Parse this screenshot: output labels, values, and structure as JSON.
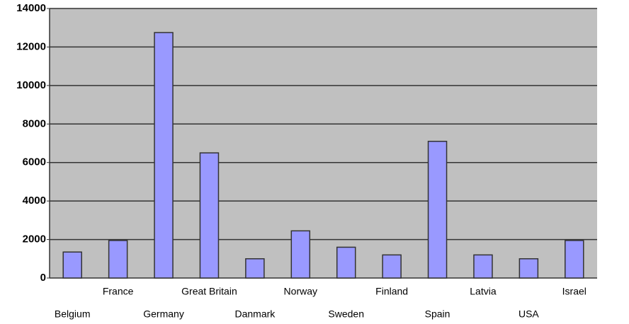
{
  "chart_data": {
    "type": "bar",
    "categories": [
      "Belgium",
      "France",
      "Germany",
      "Great Britain",
      "Danmark",
      "Norway",
      "Sweden",
      "Finland",
      "Spain",
      "Latvia",
      "USA",
      "Israel"
    ],
    "values": [
      1350,
      1950,
      12750,
      6500,
      1000,
      2450,
      1600,
      1200,
      7100,
      1200,
      1000,
      1950
    ],
    "color": "#9999ff",
    "ylim": [
      0,
      14000
    ],
    "yticks": [
      0,
      2000,
      4000,
      6000,
      8000,
      10000,
      12000,
      14000
    ],
    "grid": true,
    "plot_background": "#c0c0c0"
  }
}
